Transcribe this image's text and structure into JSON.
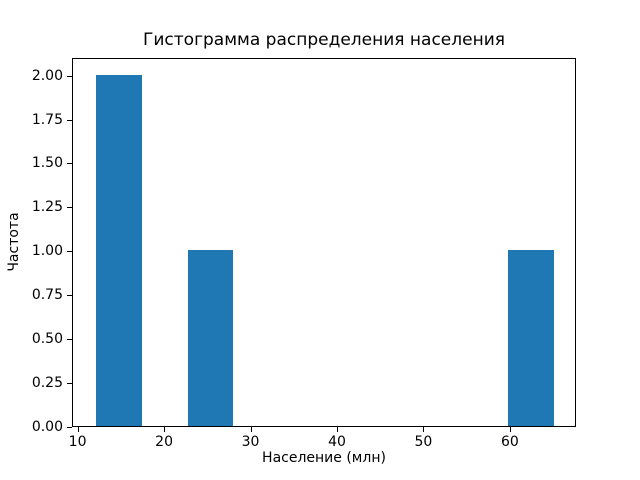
{
  "figure": {
    "background_color": "#ffffff",
    "bar_color": "#1f77b4",
    "axis_color": "#000000"
  },
  "chart_data": {
    "type": "bar",
    "subtype": "histogram",
    "title": "Гистограмма распределения населения",
    "xlabel": "Население (млн)",
    "ylabel": "Частота",
    "xlim": [
      9.35,
      67.65
    ],
    "ylim": [
      0,
      2.1
    ],
    "xticks": [
      10,
      20,
      30,
      40,
      50,
      60
    ],
    "xtick_labels": [
      "10",
      "20",
      "30",
      "40",
      "50",
      "60"
    ],
    "yticks": [
      0.0,
      0.25,
      0.5,
      0.75,
      1.0,
      1.25,
      1.5,
      1.75,
      2.0
    ],
    "ytick_labels": [
      "0.00",
      "0.25",
      "0.50",
      "0.75",
      "1.00",
      "1.25",
      "1.50",
      "1.75",
      "2.00"
    ],
    "grid": false,
    "legend": null,
    "bars": [
      {
        "x0": 12.0,
        "x1": 17.3,
        "height": 2
      },
      {
        "x0": 22.6,
        "x1": 27.9,
        "height": 1
      },
      {
        "x0": 59.7,
        "x1": 65.0,
        "height": 1
      }
    ]
  }
}
